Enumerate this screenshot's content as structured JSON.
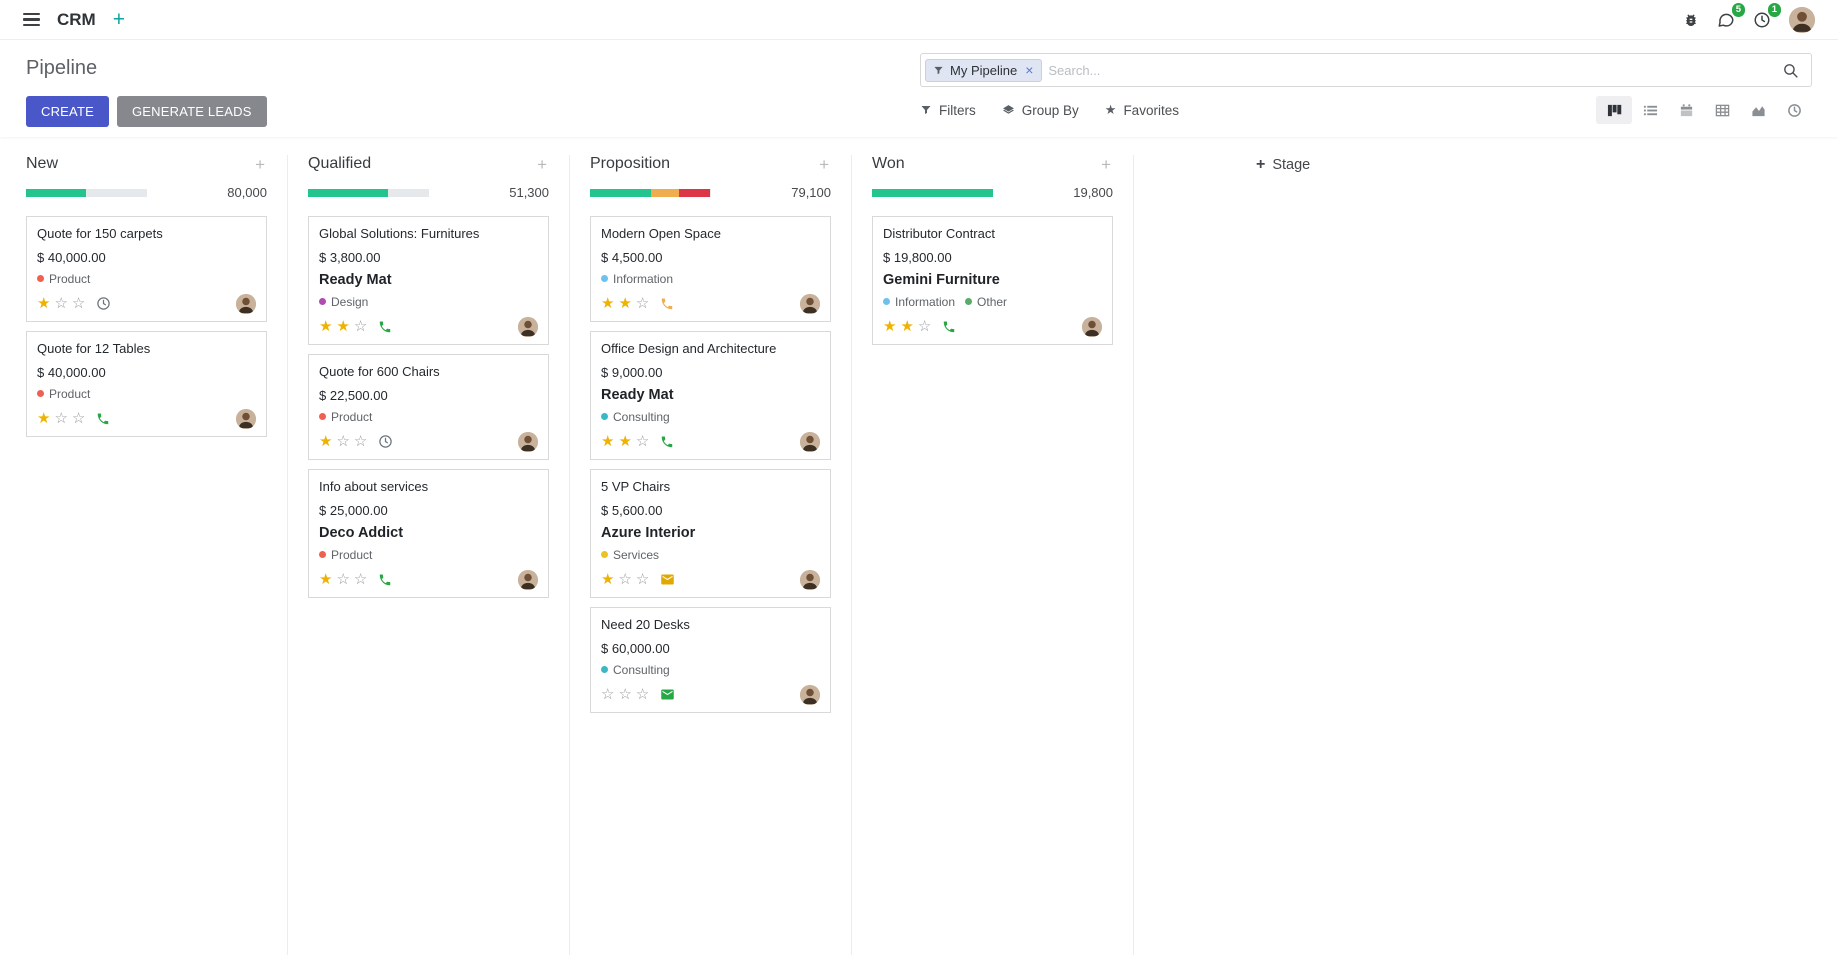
{
  "navbar": {
    "app_name": "CRM",
    "systray": {
      "messages_badge": "5",
      "activities_badge": "1"
    }
  },
  "control_panel": {
    "title": "Pipeline",
    "buttons": {
      "create": "CREATE",
      "generate_leads": "GENERATE LEADS"
    },
    "search": {
      "facet_label": "My Pipeline",
      "facet_remove": "×",
      "placeholder": "Search...",
      "value": ""
    },
    "menus": {
      "filters": "Filters",
      "group_by": "Group By",
      "favorites": "Favorites"
    },
    "view_switcher": {
      "active": "kanban",
      "views": [
        "kanban",
        "list",
        "calendar",
        "pivot",
        "graph",
        "activity"
      ]
    }
  },
  "colors": {
    "primary_button": "#4a57c8",
    "secondary_button": "#86888d",
    "navbar_plus": "#11a39e",
    "badge_green": "#28a745",
    "star_gold": "#efb200",
    "progress_green": "#23c48e",
    "progress_yellow": "#f0ad4e",
    "progress_red": "#dc3545"
  },
  "icons": {
    "navbar": [
      "hamburger-icon",
      "plus-icon",
      "bug-icon",
      "chat-bubble-icon",
      "clock-icon",
      "user-avatar"
    ],
    "search": [
      "filter-funnel-icon",
      "magnifier-icon"
    ],
    "menus": [
      "filter-funnel-icon",
      "layers-icon",
      "star-icon"
    ],
    "views": [
      "kanban-view-icon",
      "list-view-icon",
      "calendar-view-icon",
      "pivot-view-icon",
      "graph-view-icon",
      "activity-view-icon"
    ]
  },
  "board": {
    "add_stage": "Stage",
    "columns": [
      {
        "name": "New",
        "counter": "80,000",
        "progress": [
          {
            "color": "#23c48e",
            "pct": 50
          }
        ],
        "cards": [
          {
            "title": "Quote for 150 carpets",
            "amount": "$ 40,000.00",
            "partner": "",
            "tags": [
              {
                "label": "Product",
                "color": "#f06050"
              }
            ],
            "stars": 1,
            "activity": {
              "type": "clock",
              "color": "#6c757d"
            }
          },
          {
            "title": "Quote for 12 Tables",
            "amount": "$ 40,000.00",
            "partner": "",
            "tags": [
              {
                "label": "Product",
                "color": "#f06050"
              }
            ],
            "stars": 1,
            "activity": {
              "type": "phone",
              "color": "#28a745"
            }
          }
        ]
      },
      {
        "name": "Qualified",
        "counter": "51,300",
        "progress": [
          {
            "color": "#23c48e",
            "pct": 66
          }
        ],
        "cards": [
          {
            "title": "Global Solutions: Furnitures",
            "amount": "$ 3,800.00",
            "partner": "Ready Mat",
            "tags": [
              {
                "label": "Design",
                "color": "#b04bb0"
              }
            ],
            "stars": 2,
            "activity": {
              "type": "phone",
              "color": "#28a745"
            }
          },
          {
            "title": "Quote for 600 Chairs",
            "amount": "$ 22,500.00",
            "partner": "",
            "tags": [
              {
                "label": "Product",
                "color": "#f06050"
              }
            ],
            "stars": 1,
            "activity": {
              "type": "clock",
              "color": "#6c757d"
            }
          },
          {
            "title": "Info about services",
            "amount": "$ 25,000.00",
            "partner": "Deco Addict",
            "tags": [
              {
                "label": "Product",
                "color": "#f06050"
              }
            ],
            "stars": 1,
            "activity": {
              "type": "phone",
              "color": "#28a745"
            }
          }
        ]
      },
      {
        "name": "Proposition",
        "counter": "79,100",
        "progress": [
          {
            "color": "#23c48e",
            "pct": 51
          },
          {
            "color": "#f0ad4e",
            "pct": 23
          },
          {
            "color": "#dc3545",
            "pct": 26
          }
        ],
        "cards": [
          {
            "title": "Modern Open Space",
            "amount": "$ 4,500.00",
            "partner": "",
            "tags": [
              {
                "label": "Information",
                "color": "#6cc1ed"
              }
            ],
            "stars": 2,
            "activity": {
              "type": "phone",
              "color": "#f0ad4e"
            }
          },
          {
            "title": "Office Design and Architecture",
            "amount": "$ 9,000.00",
            "partner": "Ready Mat",
            "tags": [
              {
                "label": "Consulting",
                "color": "#3bb8c3"
              }
            ],
            "stars": 2,
            "activity": {
              "type": "phone",
              "color": "#28a745"
            }
          },
          {
            "title": "5 VP Chairs",
            "amount": "$ 5,600.00",
            "partner": "Azure Interior",
            "tags": [
              {
                "label": "Services",
                "color": "#e9c227"
              }
            ],
            "stars": 1,
            "activity": {
              "type": "email",
              "color": "#e0a800"
            }
          },
          {
            "title": "Need 20 Desks",
            "amount": "$ 60,000.00",
            "partner": "",
            "tags": [
              {
                "label": "Consulting",
                "color": "#3bb8c3"
              }
            ],
            "stars": 0,
            "activity": {
              "type": "email",
              "color": "#28a745"
            }
          }
        ]
      },
      {
        "name": "Won",
        "counter": "19,800",
        "progress": [
          {
            "color": "#23c48e",
            "pct": 100
          }
        ],
        "cards": [
          {
            "title": "Distributor Contract",
            "amount": "$ 19,800.00",
            "partner": "Gemini Furniture",
            "tags": [
              {
                "label": "Information",
                "color": "#6cc1ed"
              },
              {
                "label": "Other",
                "color": "#57ad68"
              }
            ],
            "stars": 2,
            "activity": {
              "type": "phone",
              "color": "#28a745"
            }
          }
        ]
      }
    ]
  }
}
